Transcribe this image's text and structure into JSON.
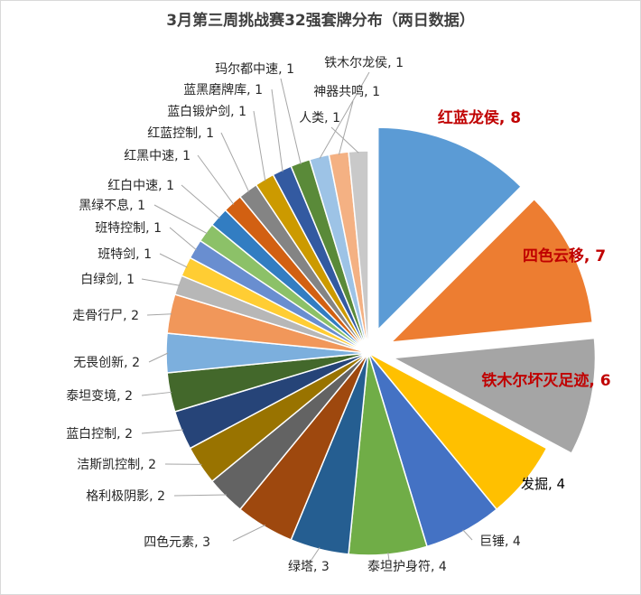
{
  "chart_data": {
    "type": "pie",
    "title": "3月第三周挑战赛32强套牌分布（两日数据）",
    "slices": [
      {
        "label": "红蓝龙侯",
        "value": 8,
        "color": "#5b9bd5",
        "exploded": true
      },
      {
        "label": "四色云移",
        "value": 7,
        "color": "#ed7d31",
        "exploded": true
      },
      {
        "label": "铁木尔坏灭足迹",
        "value": 6,
        "color": "#a5a5a5",
        "exploded": true
      },
      {
        "label": "发掘",
        "value": 4,
        "color": "#ffc000",
        "exploded": false
      },
      {
        "label": "巨锤",
        "value": 4,
        "color": "#4472c4",
        "exploded": false
      },
      {
        "label": "泰坦护身符",
        "value": 4,
        "color": "#70ad47",
        "exploded": false
      },
      {
        "label": "绿塔",
        "value": 3,
        "color": "#255e91",
        "exploded": false
      },
      {
        "label": "四色元素",
        "value": 3,
        "color": "#9e480e",
        "exploded": false
      },
      {
        "label": "格利极阴影",
        "value": 2,
        "color": "#636363",
        "exploded": false
      },
      {
        "label": "洁斯凯控制",
        "value": 2,
        "color": "#997300",
        "exploded": false
      },
      {
        "label": "蓝白控制",
        "value": 2,
        "color": "#264478",
        "exploded": false
      },
      {
        "label": "泰坦变境",
        "value": 2,
        "color": "#43682b",
        "exploded": false
      },
      {
        "label": "无畏创新",
        "value": 2,
        "color": "#7cafdd",
        "exploded": false
      },
      {
        "label": "走骨行尸",
        "value": 2,
        "color": "#f1975a",
        "exploded": false
      },
      {
        "label": "白绿剑",
        "value": 1,
        "color": "#b7b7b7",
        "exploded": false
      },
      {
        "label": "班特剑",
        "value": 1,
        "color": "#ffcd33",
        "exploded": false
      },
      {
        "label": "班特控制",
        "value": 1,
        "color": "#698ed0",
        "exploded": false
      },
      {
        "label": "黑绿不息",
        "value": 1,
        "color": "#8cc168",
        "exploded": false
      },
      {
        "label": "红白中速",
        "value": 1,
        "color": "#327dc2",
        "exploded": false
      },
      {
        "label": "红黑中速",
        "value": 1,
        "color": "#d26012",
        "exploded": false
      },
      {
        "label": "红蓝控制",
        "value": 1,
        "color": "#848484",
        "exploded": false
      },
      {
        "label": "蓝白锻炉剑",
        "value": 1,
        "color": "#cc9a00",
        "exploded": false
      },
      {
        "label": "蓝黑磨牌库",
        "value": 1,
        "color": "#335aa1",
        "exploded": false
      },
      {
        "label": "玛尔都中速",
        "value": 1,
        "color": "#5a8a39",
        "exploded": false
      },
      {
        "label": "铁木尔龙侯",
        "value": 1,
        "color": "#9dc3e6",
        "exploded": false
      },
      {
        "label": "神器共鸣",
        "value": 1,
        "color": "#f4b183",
        "exploded": false
      },
      {
        "label": "人类",
        "value": 1,
        "color": "#c9c9c9",
        "exploded": false
      }
    ],
    "legend": "none",
    "data_labels": "category, value"
  }
}
